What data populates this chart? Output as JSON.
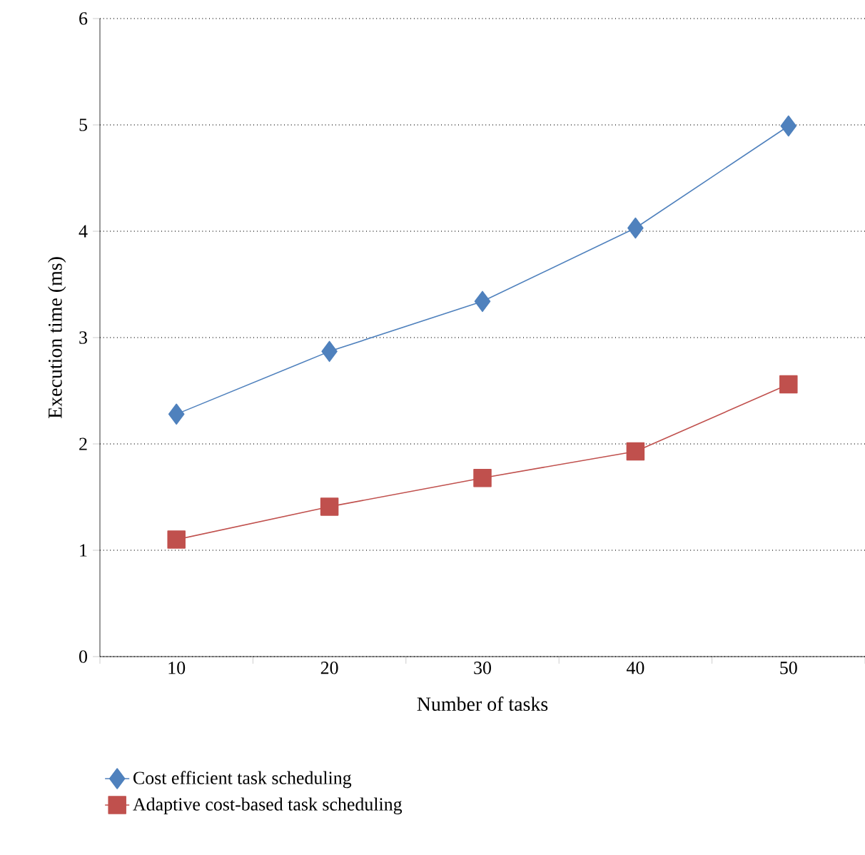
{
  "chart_data": {
    "type": "line",
    "xlabel": "Number of tasks",
    "ylabel": "Execution time (ms)",
    "categories": [
      "10",
      "20",
      "30",
      "40",
      "50"
    ],
    "series": [
      {
        "name": "Cost efficient task scheduling",
        "color": "#4f81bd",
        "marker": "diamond",
        "values": [
          2.28,
          2.87,
          3.34,
          4.03,
          4.99
        ]
      },
      {
        "name": "Adaptive cost-based task scheduling",
        "color": "#c0504d",
        "marker": "square",
        "values": [
          1.1,
          1.41,
          1.68,
          1.93,
          2.56
        ]
      }
    ],
    "ylim": [
      0,
      6
    ],
    "yticks": [
      0,
      1,
      2,
      3,
      4,
      5,
      6
    ],
    "grid": "y",
    "legend": "bottom"
  }
}
